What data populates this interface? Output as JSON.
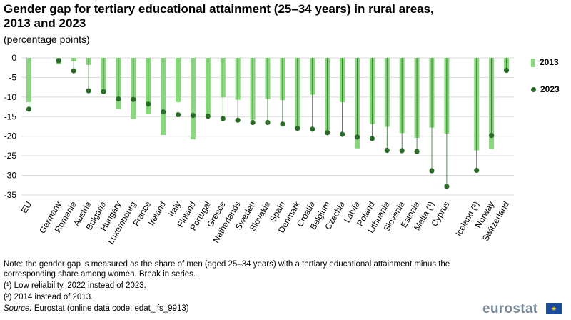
{
  "header": {
    "title": "Gender gap for tertiary educational attainment (25–34 years) in rural areas, 2013 and 2023",
    "subtitle": "(percentage points)"
  },
  "legend": {
    "s2013": "2013",
    "s2023": "2023"
  },
  "notes": {
    "line1": "Note: the gender gap is measured as the share of men (aged 25–34 years) with a tertiary educational attainment minus the corresponding share among women. Break in series.",
    "line2": "(¹) Low reliability. 2022 instead of 2023.",
    "line3": "(²) 2014 instead of 2013.",
    "source_label": "Source:",
    "source_text": " Eurostat (online data code: edat_lfs_9913)"
  },
  "logo": {
    "text": "eurostat"
  },
  "colors": {
    "bar2013": "#86d87a",
    "dot2023": "#2a6b28",
    "grid": "#d9d9d9"
  },
  "chart_data": {
    "type": "bar",
    "categories": [
      "EU",
      "",
      "Germany",
      "Romania",
      "Austria",
      "Bulgaria",
      "Hungary",
      "Luxembourg",
      "France",
      "Ireland",
      "Italy",
      "Finland",
      "Portugal",
      "Greece",
      "Netherlands",
      "Sweden",
      "Slovakia",
      "Spain",
      "Denmark",
      "Croatia",
      "Belgium",
      "Czechia",
      "Latvia",
      "Poland",
      "Lithuania",
      "Slovenia",
      "Estonia",
      "Malta (¹)",
      "Cyprus",
      "",
      "Iceland (²)",
      "Norway",
      "Switzerland"
    ],
    "series": [
      {
        "name": "2013",
        "values": [
          -11.3,
          null,
          -1.6,
          -0.9,
          -1.8,
          -8.2,
          -13.1,
          -15.6,
          -14.4,
          -19.7,
          -11.3,
          -20.8,
          -14.9,
          -10.1,
          -10.7,
          -15.8,
          -10.5,
          -10.8,
          -18.4,
          -9.4,
          -18.6,
          -11.3,
          -23.1,
          -16.9,
          -17.6,
          -19.2,
          -20.4,
          -17.8,
          -19.3,
          null,
          -23.6,
          -23.3,
          -3.1
        ]
      },
      {
        "name": "2023",
        "values": [
          -13.1,
          null,
          -0.7,
          -3.3,
          -8.4,
          -8.6,
          -10.5,
          -10.6,
          -11.8,
          -13.8,
          -14.5,
          -14.7,
          -14.9,
          -15.5,
          -15.9,
          -16.5,
          -16.5,
          -16.9,
          -18.0,
          -18.2,
          -19.1,
          -19.5,
          -20.2,
          -20.6,
          -23.6,
          -23.7,
          -23.9,
          -28.8,
          -32.8,
          null,
          -28.7,
          -19.8,
          -3.2
        ]
      }
    ],
    "ylim": [
      -35,
      0
    ],
    "yticks": [
      0,
      -5,
      -10,
      -15,
      -20,
      -25,
      -30,
      -35
    ],
    "grid": true,
    "legend_position": "right"
  }
}
